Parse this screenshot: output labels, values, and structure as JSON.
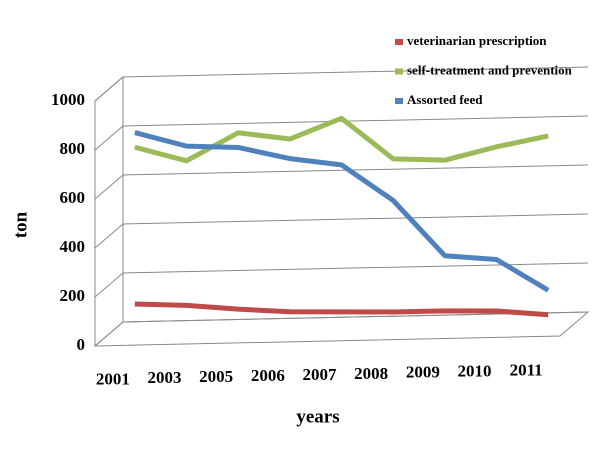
{
  "chart_data": {
    "type": "line",
    "x_label": "years",
    "y_label": "ton",
    "categories": [
      "2001",
      "2003",
      "2005",
      "2006",
      "2007",
      "2008",
      "2009",
      "2010",
      "2011"
    ],
    "series": [
      {
        "name": "veterinarian prescription",
        "color": "#be4b48",
        "values": [
          120,
          110,
          90,
          75,
          70,
          65,
          65,
          60,
          40
        ]
      },
      {
        "name": "self-treatment and prevention",
        "color": "#9bbb59",
        "values": [
          760,
          700,
          810,
          780,
          860,
          690,
          680,
          730,
          770
        ]
      },
      {
        "name": "Assorted feed",
        "color": "#4f81bd",
        "values": [
          820,
          760,
          750,
          700,
          670,
          520,
          290,
          270,
          140
        ]
      }
    ],
    "ylim": [
      0,
      1000
    ],
    "yticks": [
      0,
      200,
      400,
      600,
      800,
      1000
    ],
    "grid": true,
    "legend": "top-right"
  }
}
